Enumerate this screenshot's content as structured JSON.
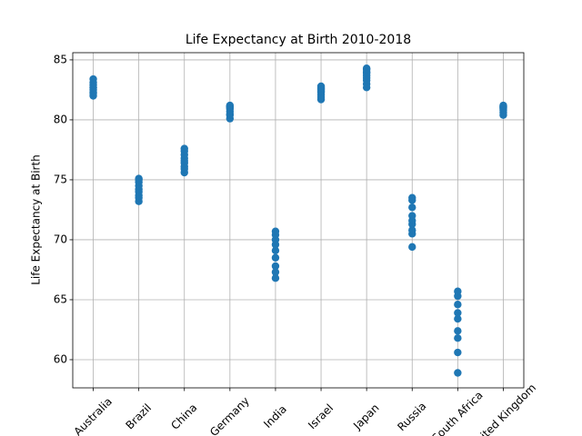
{
  "chart_data": {
    "type": "scatter",
    "title": "Life Expectancy at Birth 2010-2018",
    "y_label": "Life Expectancy at Birth",
    "categories": [
      "Australia",
      "Brazil",
      "China",
      "Germany",
      "India",
      "Israel",
      "Japan",
      "Russia",
      "South Africa",
      "United Kingdom"
    ],
    "values": [
      [
        82.0,
        82.2,
        82.3,
        82.5,
        82.7,
        82.7,
        82.9,
        83.1,
        83.4
      ],
      [
        73.2,
        73.5,
        73.7,
        74.0,
        74.2,
        74.5,
        74.8,
        75.0,
        75.1
      ],
      [
        75.6,
        75.9,
        76.1,
        76.4,
        76.6,
        76.8,
        77.1,
        77.4,
        77.6
      ],
      [
        80.1,
        80.4,
        80.5,
        80.7,
        80.9,
        81.0,
        81.1,
        81.1,
        81.2
      ],
      [
        66.8,
        67.3,
        67.8,
        68.5,
        69.1,
        69.6,
        70.0,
        70.4,
        70.7
      ],
      [
        81.7,
        81.9,
        82.1,
        82.3,
        82.4,
        82.5,
        82.6,
        82.7,
        82.8
      ],
      [
        82.7,
        83.0,
        83.3,
        83.5,
        83.7,
        83.9,
        84.0,
        84.2,
        84.3
      ],
      [
        69.4,
        70.5,
        70.8,
        71.3,
        71.6,
        72.0,
        72.7,
        73.3,
        73.5
      ],
      [
        58.9,
        60.6,
        61.8,
        62.4,
        63.4,
        63.9,
        64.6,
        65.3,
        65.7
      ],
      [
        80.4,
        80.6,
        80.8,
        80.9,
        81.0,
        81.0,
        81.1,
        81.1,
        81.2
      ]
    ],
    "color": "#1f77b4",
    "ylim": [
      57.65,
      85.6
    ],
    "yticks": [
      60,
      65,
      70,
      75,
      80,
      85
    ],
    "grid": true
  }
}
